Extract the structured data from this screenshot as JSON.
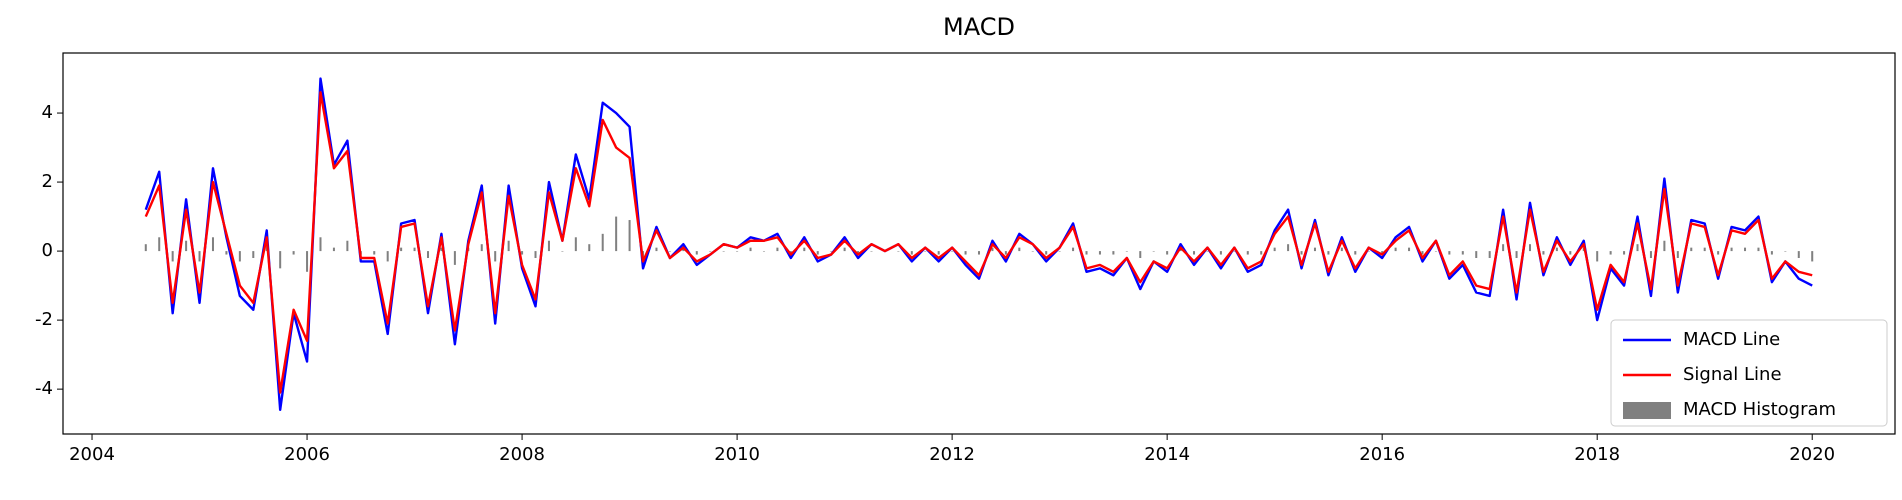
{
  "chart_data": {
    "type": "line",
    "title": "MACD",
    "x": [
      2004.5,
      2004.625,
      2004.75,
      2004.875,
      2005,
      2005.125,
      2005.25,
      2005.375,
      2005.5,
      2005.625,
      2005.75,
      2005.875,
      2006,
      2006.125,
      2006.25,
      2006.375,
      2006.5,
      2006.625,
      2006.75,
      2006.875,
      2007,
      2007.125,
      2007.25,
      2007.375,
      2007.5,
      2007.625,
      2007.75,
      2007.875,
      2008,
      2008.125,
      2008.25,
      2008.375,
      2008.5,
      2008.625,
      2008.75,
      2008.875,
      2009,
      2009.125,
      2009.25,
      2009.375,
      2009.5,
      2009.625,
      2009.75,
      2009.875,
      2010,
      2010.125,
      2010.25,
      2010.375,
      2010.5,
      2010.625,
      2010.75,
      2010.875,
      2011,
      2011.125,
      2011.25,
      2011.375,
      2011.5,
      2011.625,
      2011.75,
      2011.875,
      2012,
      2012.125,
      2012.25,
      2012.375,
      2012.5,
      2012.625,
      2012.75,
      2012.875,
      2013,
      2013.125,
      2013.25,
      2013.375,
      2013.5,
      2013.625,
      2013.75,
      2013.875,
      2014,
      2014.125,
      2014.25,
      2014.375,
      2014.5,
      2014.625,
      2014.75,
      2014.875,
      2015,
      2015.125,
      2015.25,
      2015.375,
      2015.5,
      2015.625,
      2015.75,
      2015.875,
      2016,
      2016.125,
      2016.25,
      2016.375,
      2016.5,
      2016.625,
      2016.75,
      2016.875,
      2017,
      2017.125,
      2017.25,
      2017.375,
      2017.5,
      2017.625,
      2017.75,
      2017.875,
      2018,
      2018.125,
      2018.25,
      2018.375,
      2018.5,
      2018.625,
      2018.75,
      2018.875,
      2019,
      2019.125,
      2019.25,
      2019.375,
      2019.5,
      2019.625,
      2019.75,
      2019.875,
      2020
    ],
    "series": [
      {
        "name": "MACD Line",
        "type": "line",
        "color": "#0000ff",
        "values": [
          1.2,
          2.3,
          -1.8,
          1.5,
          -1.5,
          2.4,
          0.4,
          -1.3,
          -1.7,
          0.6,
          -4.6,
          -1.8,
          -3.2,
          5.0,
          2.5,
          3.2,
          -0.3,
          -0.3,
          -2.4,
          0.8,
          0.9,
          -1.8,
          0.5,
          -2.7,
          0.3,
          1.9,
          -2.1,
          1.9,
          -0.5,
          -1.6,
          2.0,
          0.3,
          2.8,
          1.5,
          4.3,
          4.0,
          3.6,
          -0.5,
          0.7,
          -0.2,
          0.2,
          -0.4,
          -0.1,
          0.2,
          0.1,
          0.4,
          0.3,
          0.5,
          -0.2,
          0.4,
          -0.3,
          -0.1,
          0.4,
          -0.2,
          0.2,
          0.0,
          0.2,
          -0.3,
          0.1,
          -0.3,
          0.1,
          -0.4,
          -0.8,
          0.3,
          -0.3,
          0.5,
          0.2,
          -0.3,
          0.1,
          0.8,
          -0.6,
          -0.5,
          -0.7,
          -0.2,
          -1.1,
          -0.3,
          -0.6,
          0.2,
          -0.4,
          0.1,
          -0.5,
          0.1,
          -0.6,
          -0.4,
          0.6,
          1.2,
          -0.5,
          0.9,
          -0.7,
          0.4,
          -0.6,
          0.1,
          -0.2,
          0.4,
          0.7,
          -0.3,
          0.3,
          -0.8,
          -0.4,
          -1.2,
          -1.3,
          1.2,
          -1.4,
          1.4,
          -0.7,
          0.4,
          -0.4,
          0.3,
          -2.0,
          -0.5,
          -1.0,
          1.0,
          -1.3,
          2.1,
          -1.2,
          0.9,
          0.8,
          -0.8,
          0.7,
          0.6,
          1.0,
          -0.9,
          -0.3,
          -0.8,
          -1.0
        ]
      },
      {
        "name": "Signal Line",
        "type": "line",
        "color": "#ff0000",
        "values": [
          1.0,
          1.9,
          -1.5,
          1.2,
          -1.2,
          2.0,
          0.5,
          -1.0,
          -1.5,
          0.4,
          -4.1,
          -1.7,
          -2.6,
          4.6,
          2.4,
          2.9,
          -0.2,
          -0.2,
          -2.1,
          0.7,
          0.8,
          -1.6,
          0.4,
          -2.3,
          0.2,
          1.7,
          -1.8,
          1.6,
          -0.4,
          -1.4,
          1.7,
          0.3,
          2.4,
          1.3,
          3.8,
          3.0,
          2.7,
          -0.3,
          0.6,
          -0.2,
          0.1,
          -0.3,
          -0.1,
          0.2,
          0.1,
          0.3,
          0.3,
          0.4,
          -0.1,
          0.3,
          -0.2,
          -0.1,
          0.3,
          -0.1,
          0.2,
          0.0,
          0.2,
          -0.2,
          0.1,
          -0.2,
          0.1,
          -0.3,
          -0.7,
          0.2,
          -0.2,
          0.4,
          0.2,
          -0.2,
          0.1,
          0.7,
          -0.5,
          -0.4,
          -0.6,
          -0.2,
          -0.9,
          -0.3,
          -0.5,
          0.1,
          -0.3,
          0.1,
          -0.4,
          0.1,
          -0.5,
          -0.3,
          0.5,
          1.0,
          -0.4,
          0.8,
          -0.6,
          0.3,
          -0.5,
          0.1,
          -0.1,
          0.3,
          0.6,
          -0.2,
          0.3,
          -0.7,
          -0.3,
          -1.0,
          -1.1,
          1.0,
          -1.2,
          1.2,
          -0.6,
          0.3,
          -0.3,
          0.2,
          -1.7,
          -0.4,
          -0.9,
          0.8,
          -1.1,
          1.8,
          -1.0,
          0.8,
          0.7,
          -0.7,
          0.6,
          0.5,
          0.9,
          -0.8,
          -0.3,
          -0.6,
          -0.7
        ]
      },
      {
        "name": "MACD Histogram",
        "type": "bar",
        "color": "#808080",
        "values": [
          0.2,
          0.4,
          -0.3,
          0.3,
          -0.3,
          0.4,
          -0.1,
          -0.3,
          -0.2,
          0.2,
          -0.5,
          -0.1,
          -0.6,
          0.4,
          0.1,
          0.3,
          -0.1,
          -0.1,
          -0.3,
          0.1,
          0.1,
          -0.2,
          0.1,
          -0.4,
          0.1,
          0.2,
          -0.3,
          0.3,
          -0.1,
          -0.2,
          0.3,
          0,
          0.4,
          0.2,
          0.5,
          1.0,
          0.9,
          -0.2,
          0.1,
          0,
          0.1,
          -0.1,
          0,
          0,
          0,
          0.1,
          0,
          0.1,
          -0.1,
          0.1,
          -0.1,
          0,
          0.1,
          -0.1,
          0,
          0,
          0,
          -0.1,
          0,
          -0.1,
          0,
          -0.1,
          -0.1,
          0.1,
          -0.1,
          0.1,
          0,
          -0.1,
          0,
          0.1,
          -0.1,
          -0.1,
          -0.1,
          0,
          -0.2,
          0,
          -0.1,
          0.1,
          -0.1,
          0,
          -0.1,
          0,
          -0.1,
          -0.1,
          0.1,
          0.2,
          -0.1,
          0.1,
          -0.1,
          0.1,
          -0.1,
          0,
          -0.1,
          0.1,
          0.1,
          -0.1,
          0,
          -0.1,
          -0.1,
          -0.2,
          -0.2,
          0.2,
          -0.2,
          0.2,
          -0.1,
          0.1,
          -0.1,
          0.1,
          -0.3,
          -0.1,
          -0.1,
          0.2,
          -0.2,
          0.3,
          -0.2,
          0.1,
          0.1,
          -0.1,
          0.1,
          0.1,
          0.1,
          -0.1,
          0,
          -0.2,
          -0.3
        ]
      }
    ],
    "xlim": [
      2003.73,
      2020.77
    ],
    "xticks": [
      2004,
      2006,
      2008,
      2010,
      2012,
      2014,
      2016,
      2018,
      2020
    ],
    "ylim": [
      -5.3,
      5.74
    ],
    "yticks": [
      -4,
      -2,
      0,
      2,
      4
    ],
    "grid": false,
    "legend": "lower right"
  }
}
